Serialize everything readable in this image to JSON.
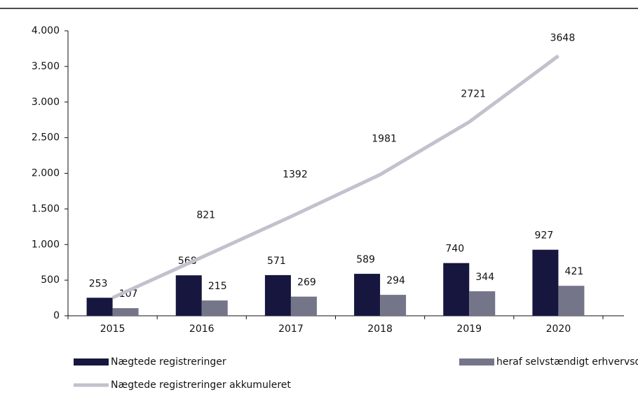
{
  "chart_data": {
    "type": "bar_line",
    "categories": [
      "2015",
      "2016",
      "2017",
      "2018",
      "2019",
      "2020"
    ],
    "series": [
      {
        "name": "Nægtede registreringer",
        "color": "#16163f",
        "type": "bar",
        "values": [
          253,
          568,
          571,
          589,
          740,
          927
        ]
      },
      {
        "name": "heraf selvstændigt erhvervsdrivende",
        "color": "#75758a",
        "type": "bar",
        "values": [
          107,
          215,
          269,
          294,
          344,
          421
        ]
      },
      {
        "name": "Nægtede registreringer akkumuleret",
        "color": "#c2c1cd",
        "type": "line",
        "values": [
          253,
          821,
          1392,
          1981,
          2721,
          3648
        ]
      }
    ],
    "ylim": [
      0,
      4000
    ],
    "yticks": [
      0,
      500,
      {
        "value": 1000,
        "label": "1.000"
      },
      {
        "value": 1500,
        "label": "1.500"
      },
      {
        "value": 2000,
        "label": "2.000"
      },
      {
        "value": 2500,
        "label": "2.500"
      },
      {
        "value": 3000,
        "label": "3.000"
      },
      {
        "value": 3500,
        "label": "3.500"
      },
      {
        "value": 4000,
        "label": "4.000"
      }
    ],
    "grid": false,
    "legend": "bottom"
  }
}
